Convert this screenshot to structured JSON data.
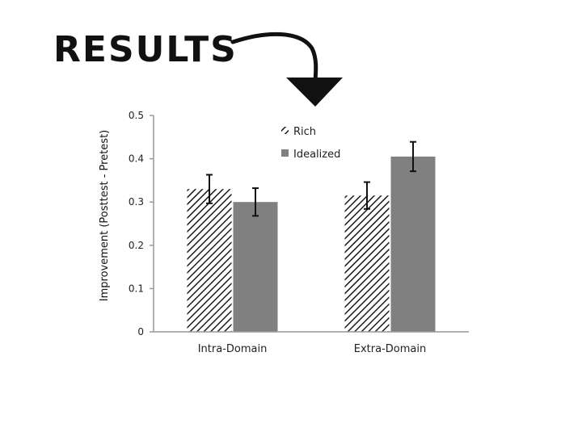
{
  "header": {
    "title": "RESULTS"
  },
  "chart_data": {
    "type": "bar",
    "title": "",
    "xlabel": "",
    "ylabel": "Improvement (Posttest - Pretest)",
    "ylim": [
      0,
      0.5
    ],
    "yticks": [
      "0",
      "0.1",
      "0.2",
      "0.3",
      "0.4",
      "0.5"
    ],
    "categories": [
      "Intra-Domain",
      "Extra-Domain"
    ],
    "series": [
      {
        "name": "Rich",
        "pattern": "hatched",
        "color": "#1a1a1a",
        "values": [
          0.33,
          0.315
        ],
        "errors": [
          0.033,
          0.031
        ]
      },
      {
        "name": "Idealized",
        "pattern": "solid",
        "color": "#808080",
        "values": [
          0.3,
          0.405
        ],
        "errors": [
          0.032,
          0.034
        ]
      }
    ],
    "legend_position": "top-right"
  }
}
